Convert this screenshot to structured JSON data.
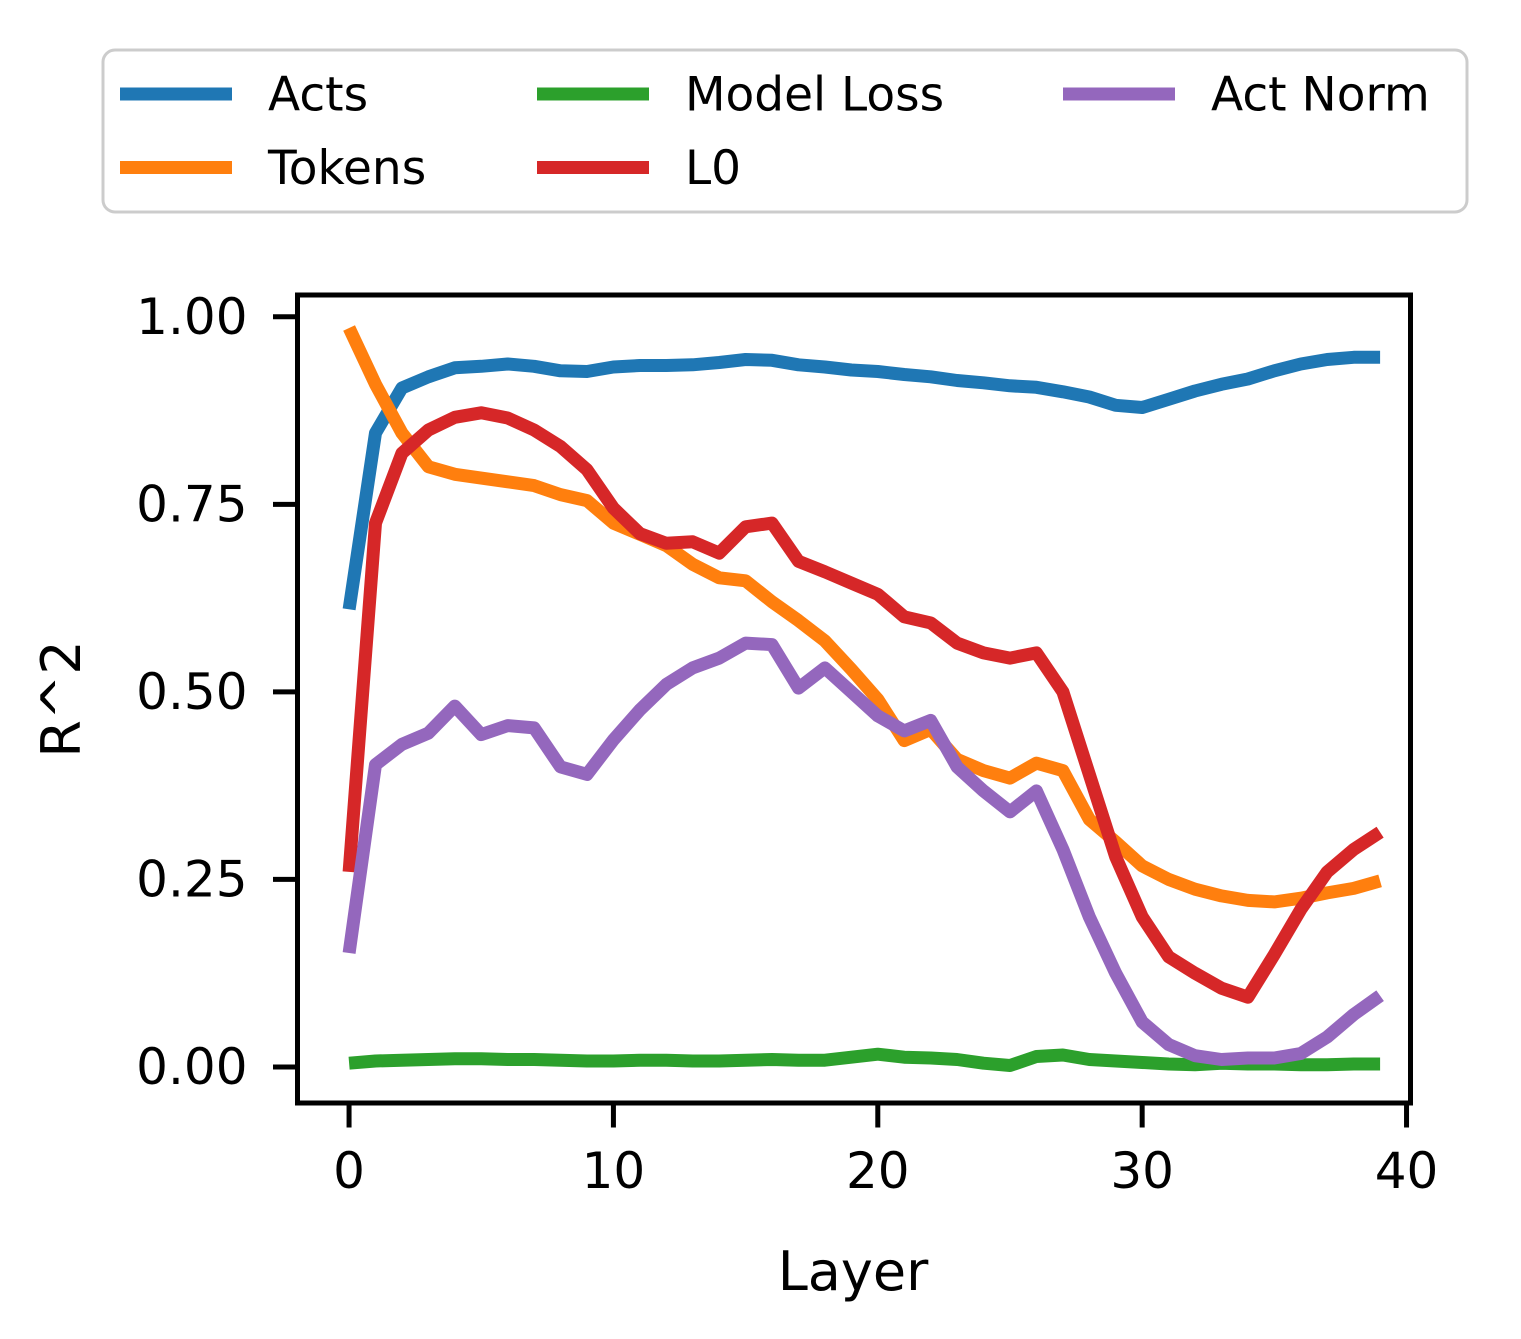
{
  "figure": {
    "background": "#ffffff",
    "axes_edge_color": "#000000",
    "legend_border_color": "#cccccc"
  },
  "legend": {
    "position": "top",
    "columns": 3,
    "entries": [
      {
        "label": "Acts",
        "color": "#1f77b4",
        "icon": "line-swatch"
      },
      {
        "label": "Tokens",
        "color": "#ff7f0e",
        "icon": "line-swatch"
      },
      {
        "label": "Model Loss",
        "color": "#2ca02c",
        "icon": "line-swatch"
      },
      {
        "label": "L0",
        "color": "#d62728",
        "icon": "line-swatch"
      },
      {
        "label": "Act Norm",
        "color": "#9467bd",
        "icon": "line-swatch"
      }
    ]
  },
  "chart_data": {
    "type": "line",
    "title": "",
    "xlabel": "Layer",
    "ylabel": "R^2",
    "grid": false,
    "legend_position": "top outside, 3 columns",
    "xlim": [
      -1.95,
      40.15
    ],
    "ylim": [
      -0.048,
      1.029
    ],
    "xticks": {
      "values": [
        0,
        10,
        20,
        30,
        40
      ],
      "labels": [
        "0",
        "10",
        "20",
        "30",
        "40"
      ]
    },
    "yticks": {
      "values": [
        0,
        0.25,
        0.5,
        0.75,
        1.0
      ],
      "labels": [
        "0.00",
        "0.25",
        "0.50",
        "0.75",
        "1.00"
      ]
    },
    "x": [
      0,
      1,
      2,
      3,
      4,
      5,
      6,
      7,
      8,
      9,
      10,
      11,
      12,
      13,
      14,
      15,
      16,
      17,
      18,
      19,
      20,
      21,
      22,
      23,
      24,
      25,
      26,
      27,
      28,
      29,
      30,
      31,
      32,
      33,
      34,
      35,
      36,
      37,
      38,
      39
    ],
    "series": [
      {
        "name": "Acts",
        "color": "#1f77b4",
        "values": [
          0.61,
          0.845,
          0.905,
          0.92,
          0.932,
          0.934,
          0.937,
          0.934,
          0.928,
          0.927,
          0.933,
          0.935,
          0.935,
          0.936,
          0.939,
          0.943,
          0.942,
          0.936,
          0.933,
          0.929,
          0.927,
          0.923,
          0.92,
          0.915,
          0.912,
          0.908,
          0.906,
          0.9,
          0.893,
          0.882,
          0.879,
          0.89,
          0.901,
          0.91,
          0.917,
          0.928,
          0.937,
          0.943,
          0.946,
          0.946
        ]
      },
      {
        "name": "Tokens",
        "color": "#ff7f0e",
        "values": [
          0.985,
          0.91,
          0.845,
          0.8,
          0.79,
          0.785,
          0.78,
          0.775,
          0.763,
          0.755,
          0.725,
          0.71,
          0.695,
          0.67,
          0.652,
          0.648,
          0.62,
          0.595,
          0.568,
          0.53,
          0.49,
          0.435,
          0.45,
          0.41,
          0.395,
          0.385,
          0.405,
          0.395,
          0.33,
          0.3,
          0.268,
          0.25,
          0.237,
          0.228,
          0.222,
          0.22,
          0.225,
          0.232,
          0.238,
          0.248
        ]
      },
      {
        "name": "Model Loss",
        "color": "#2ca02c",
        "values": [
          0.005,
          0.008,
          0.009,
          0.01,
          0.011,
          0.011,
          0.01,
          0.01,
          0.009,
          0.008,
          0.008,
          0.009,
          0.009,
          0.008,
          0.008,
          0.009,
          0.01,
          0.009,
          0.009,
          0.013,
          0.017,
          0.013,
          0.012,
          0.01,
          0.005,
          0.002,
          0.014,
          0.016,
          0.01,
          0.008,
          0.006,
          0.004,
          0.003,
          0.005,
          0.004,
          0.004,
          0.003,
          0.003,
          0.004,
          0.004
        ]
      },
      {
        "name": "L0",
        "color": "#d62728",
        "values": [
          0.26,
          0.725,
          0.818,
          0.849,
          0.866,
          0.872,
          0.865,
          0.849,
          0.827,
          0.796,
          0.745,
          0.711,
          0.698,
          0.7,
          0.685,
          0.72,
          0.725,
          0.674,
          0.66,
          0.645,
          0.63,
          0.6,
          0.592,
          0.565,
          0.552,
          0.545,
          0.552,
          0.5,
          0.39,
          0.28,
          0.2,
          0.147,
          0.125,
          0.105,
          0.093,
          0.15,
          0.21,
          0.26,
          0.29,
          0.313
        ]
      },
      {
        "name": "Act Norm",
        "color": "#9467bd",
        "values": [
          0.152,
          0.403,
          0.43,
          0.445,
          0.481,
          0.443,
          0.455,
          0.452,
          0.4,
          0.39,
          0.436,
          0.476,
          0.51,
          0.532,
          0.545,
          0.565,
          0.563,
          0.505,
          0.532,
          0.5,
          0.468,
          0.448,
          0.462,
          0.4,
          0.368,
          0.34,
          0.368,
          0.29,
          0.2,
          0.125,
          0.06,
          0.03,
          0.015,
          0.01,
          0.012,
          0.012,
          0.018,
          0.04,
          0.07,
          0.095
        ]
      }
    ]
  }
}
